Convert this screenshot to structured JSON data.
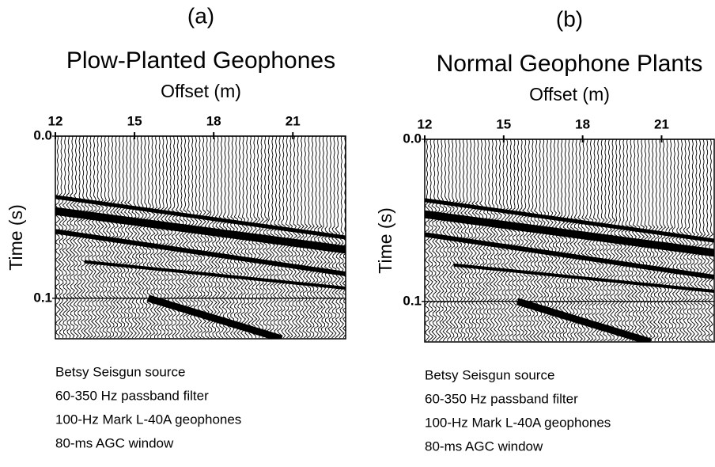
{
  "chart_data": [
    {
      "type": "seismic",
      "title": "(a)",
      "subtitle": "Plow-Planted Geophones",
      "xlabel": "Offset (m)",
      "ylabel": "Time (s)",
      "xlim": [
        12,
        23
      ],
      "xticks": [
        12,
        15,
        18,
        21
      ],
      "ylim": [
        0,
        0.125
      ],
      "yticks": [
        {
          "value": 0,
          "label": "0.0"
        },
        0.1
      ],
      "notes": [
        "Betsy Seisgun source",
        "60-350 Hz passband filter",
        "100-Hz Mark L-40A geophones",
        "80-ms AGC window"
      ]
    },
    {
      "type": "seismic",
      "title": "(b)",
      "subtitle": "Normal Geophone Plants",
      "xlabel": "Offset (m)",
      "ylabel": "Time (s)",
      "xlim": [
        12,
        23
      ],
      "xticks": [
        12,
        15,
        18,
        21
      ],
      "ylim": [
        0,
        0.125
      ],
      "yticks": [
        {
          "value": 0,
          "label": "0.0"
        },
        0.1
      ],
      "notes": [
        "Betsy Seisgun source",
        "60-350 Hz passband filter",
        "100-Hz Mark L-40A geophones",
        "80-ms AGC window"
      ]
    }
  ]
}
